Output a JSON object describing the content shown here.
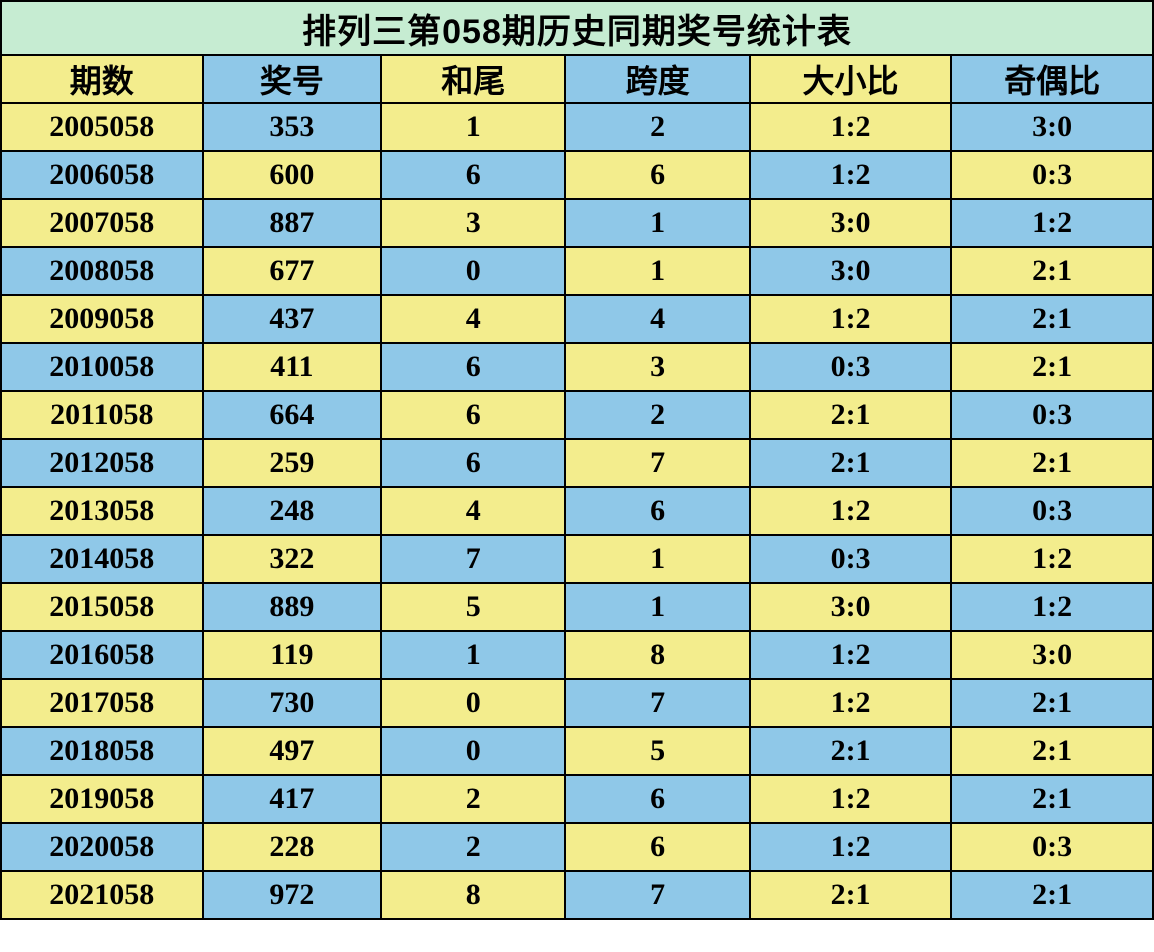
{
  "table": {
    "type": "table",
    "title": "排列三第058期历史同期奖号统计表",
    "columns": [
      "期数",
      "奖号",
      "和尾",
      "跨度",
      "大小比",
      "奇偶比"
    ],
    "column_widths_pct": [
      17.5,
      15.5,
      16,
      16,
      17.5,
      17.5
    ],
    "rows": [
      [
        "2005058",
        "353",
        "1",
        "2",
        "1:2",
        "3:0"
      ],
      [
        "2006058",
        "600",
        "6",
        "6",
        "1:2",
        "0:3"
      ],
      [
        "2007058",
        "887",
        "3",
        "1",
        "3:0",
        "1:2"
      ],
      [
        "2008058",
        "677",
        "0",
        "1",
        "3:0",
        "2:1"
      ],
      [
        "2009058",
        "437",
        "4",
        "4",
        "1:2",
        "2:1"
      ],
      [
        "2010058",
        "411",
        "6",
        "3",
        "0:3",
        "2:1"
      ],
      [
        "2011058",
        "664",
        "6",
        "2",
        "2:1",
        "0:3"
      ],
      [
        "2012058",
        "259",
        "6",
        "7",
        "2:1",
        "2:1"
      ],
      [
        "2013058",
        "248",
        "4",
        "6",
        "1:2",
        "0:3"
      ],
      [
        "2014058",
        "322",
        "7",
        "1",
        "0:3",
        "1:2"
      ],
      [
        "2015058",
        "889",
        "5",
        "1",
        "3:0",
        "1:2"
      ],
      [
        "2016058",
        "119",
        "1",
        "8",
        "1:2",
        "3:0"
      ],
      [
        "2017058",
        "730",
        "0",
        "7",
        "1:2",
        "2:1"
      ],
      [
        "2018058",
        "497",
        "0",
        "5",
        "2:1",
        "2:1"
      ],
      [
        "2019058",
        "417",
        "2",
        "6",
        "1:2",
        "2:1"
      ],
      [
        "2020058",
        "228",
        "2",
        "6",
        "1:2",
        "0:3"
      ],
      [
        "2021058",
        "972",
        "8",
        "7",
        "2:1",
        "2:1"
      ]
    ],
    "colors": {
      "title_bg": "#c6ecd2",
      "header_bg_odd": "#f3ed8d",
      "header_bg_even": "#8fc8e8",
      "cell_yellow": "#f3ed8d",
      "cell_blue": "#8fc8e8",
      "border": "#000000",
      "text": "#000000"
    },
    "title_fontsize": 34,
    "header_fontsize": 32,
    "cell_fontsize": 30,
    "font_weight": "bold",
    "border_width": 2
  }
}
